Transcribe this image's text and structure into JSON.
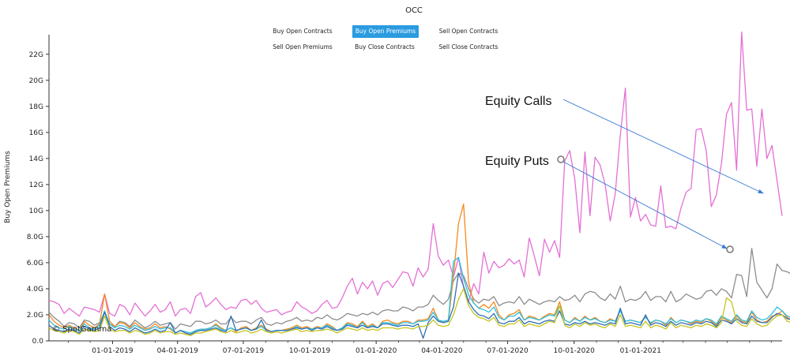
{
  "title": "OCC",
  "buttons": [
    {
      "label": "Buy Open Contracts",
      "active": false
    },
    {
      "label": "Buy Open Premiums",
      "active": true
    },
    {
      "label": "Sell Open Contracts",
      "active": false
    },
    {
      "label": "Sell Open Premiums",
      "active": false
    },
    {
      "label": "Buy Close Contracts",
      "active": false
    },
    {
      "label": "Sell Close Contracts",
      "active": false
    }
  ],
  "watermark": "© SpotGamma",
  "annotations": {
    "calls": "Equity Calls",
    "puts": "Equity Puts"
  },
  "colors": {
    "pink": "#e46fd6",
    "gray": "#8c8c8c",
    "orange": "#f5891f",
    "cyan": "#2cc0dc",
    "blue": "#2f6fb5",
    "olive": "#c6c41e",
    "arrow": "#3a7bd5",
    "accent": "#2b9be0"
  },
  "chart_data": {
    "type": "line",
    "title": "OCC",
    "xlabel": "",
    "ylabel": "Buy Open Premiums",
    "ylim": [
      0,
      23.5
    ],
    "x_tick_labels": [
      "01-01-2019",
      "04-01-2019",
      "07-01-2019",
      "10-01-2019",
      "01-01-2020",
      "04-01-2020",
      "07-01-2020",
      "10-01-2020",
      "01-01-2021"
    ],
    "y_tick_labels": [
      "0.0",
      "2.0G",
      "4.0G",
      "6.0G",
      "8.0G",
      "10G",
      "12G",
      "14G",
      "16G",
      "18G",
      "20G",
      "22G"
    ],
    "y_tick_values": [
      0,
      2,
      4,
      6,
      8,
      10,
      12,
      14,
      16,
      18,
      20,
      22
    ],
    "x_start": "2018-10-05",
    "x_step_days": 7,
    "series": [
      {
        "color_key": "pink",
        "values": [
          3.1,
          3.0,
          2.8,
          2.1,
          2.5,
          2.2,
          1.9,
          2.6,
          2.5,
          2.4,
          2.2,
          3.6,
          2.1,
          1.9,
          2.8,
          2.6,
          2.0,
          2.9,
          2.4,
          1.9,
          2.3,
          2.8,
          2.2,
          2.4,
          3.0,
          1.9,
          2.4,
          2.5,
          2.1,
          3.4,
          3.7,
          2.6,
          2.9,
          3.3,
          2.8,
          2.4,
          2.6,
          2.5,
          3.1,
          3.2,
          2.8,
          3.1,
          2.5,
          2.2,
          2.3,
          2.4,
          2.0,
          2.2,
          2.3,
          3.0,
          2.6,
          2.4,
          2.1,
          2.3,
          2.8,
          3.1,
          2.5,
          2.6,
          3.3,
          4.2,
          4.8,
          3.6,
          4.5,
          4.0,
          4.6,
          3.5,
          4.4,
          4.6,
          4.1,
          4.7,
          5.3,
          5.2,
          4.2,
          5.6,
          4.9,
          5.5,
          9.0,
          6.5,
          5.8,
          6.2,
          4.9,
          6.4,
          4.1,
          3.0,
          4.4,
          3.6,
          6.8,
          5.2,
          6.1,
          5.6,
          5.8,
          6.3,
          5.9,
          6.2,
          4.9,
          7.9,
          6.5,
          5.0,
          7.8,
          6.8,
          7.7,
          6.4,
          13.8,
          14.6,
          12.4,
          8.3,
          14.5,
          9.6,
          14.1,
          13.5,
          12.0,
          9.2,
          11.3,
          15.8,
          19.4,
          9.5,
          11.0,
          9.2,
          9.7,
          8.9,
          8.8,
          11.9,
          8.7,
          8.8,
          8.6,
          10.2,
          11.4,
          11.7,
          16.2,
          16.3,
          14.6,
          10.3,
          11.2,
          13.6,
          17.4,
          18.3,
          13.1,
          23.7,
          17.7,
          17.8,
          13.4,
          17.8,
          14.0,
          15.0,
          12.3,
          9.6
        ]
      },
      {
        "color_key": "gray",
        "values": [
          2.2,
          1.8,
          1.5,
          1.1,
          1.4,
          1.3,
          1.0,
          1.6,
          1.5,
          1.2,
          1.4,
          2.2,
          1.3,
          1.1,
          1.5,
          1.4,
          1.1,
          1.6,
          1.3,
          1.0,
          1.2,
          1.5,
          1.2,
          1.3,
          1.4,
          0.9,
          1.3,
          1.2,
          1.1,
          1.5,
          1.5,
          1.3,
          1.4,
          1.6,
          1.3,
          1.3,
          1.8,
          1.4,
          1.5,
          1.5,
          1.3,
          1.6,
          1.8,
          1.3,
          1.2,
          1.4,
          1.3,
          1.5,
          1.6,
          1.8,
          1.5,
          1.6,
          1.5,
          1.8,
          1.7,
          2.0,
          1.7,
          1.6,
          1.8,
          2.1,
          2.0,
          1.9,
          2.1,
          2.0,
          2.2,
          2.0,
          2.3,
          2.4,
          2.3,
          2.3,
          2.6,
          2.5,
          2.3,
          2.6,
          2.6,
          2.8,
          3.5,
          3.1,
          2.8,
          3.2,
          4.6,
          5.2,
          5.0,
          4.0,
          3.2,
          2.9,
          3.2,
          3.1,
          3.4,
          2.7,
          2.9,
          3.0,
          2.9,
          3.4,
          2.8,
          3.2,
          3.0,
          2.8,
          3.0,
          3.1,
          3.0,
          3.4,
          3.1,
          3.2,
          3.5,
          3.0,
          3.6,
          3.8,
          3.7,
          3.3,
          3.1,
          3.6,
          3.2,
          4.2,
          3.0,
          3.2,
          3.1,
          3.3,
          3.8,
          3.1,
          3.4,
          3.4,
          3.0,
          3.8,
          3.0,
          3.2,
          3.6,
          3.4,
          3.2,
          3.3,
          3.8,
          3.9,
          3.5,
          4.0,
          3.8,
          3.3,
          5.1,
          5.0,
          3.4,
          7.1,
          4.5,
          3.9,
          3.3,
          4.0,
          5.9,
          5.4,
          5.3,
          5.1,
          4.3,
          4.7
        ]
      },
      {
        "color_key": "orange",
        "values": [
          2.0,
          1.5,
          1.2,
          1.0,
          1.2,
          1.0,
          0.8,
          1.5,
          1.2,
          1.0,
          1.3,
          3.6,
          1.5,
          1.1,
          1.4,
          1.3,
          1.0,
          1.4,
          1.1,
          0.9,
          1.0,
          1.3,
          1.0,
          1.1,
          0.9,
          0.6,
          0.8,
          0.6,
          0.5,
          0.7,
          0.8,
          0.9,
          1.0,
          1.3,
          1.0,
          0.8,
          1.0,
          0.7,
          1.0,
          1.1,
          0.8,
          1.0,
          1.2,
          0.9,
          0.7,
          0.8,
          0.8,
          0.9,
          1.0,
          1.2,
          1.0,
          1.1,
          0.9,
          1.1,
          1.0,
          1.3,
          1.1,
          0.8,
          1.0,
          1.4,
          1.3,
          1.1,
          1.5,
          1.1,
          1.3,
          1.0,
          1.5,
          1.6,
          1.4,
          1.3,
          1.5,
          1.5,
          1.3,
          1.6,
          1.6,
          1.7,
          2.5,
          1.6,
          1.4,
          1.5,
          5.0,
          9.0,
          10.5,
          4.5,
          2.9,
          2.5,
          2.8,
          2.5,
          3.0,
          2.0,
          1.6,
          2.0,
          2.1,
          2.4,
          1.6,
          1.9,
          1.8,
          1.6,
          1.9,
          2.1,
          2.0,
          3.0,
          1.6,
          1.4,
          1.8,
          1.5,
          1.9,
          1.6,
          1.8,
          1.5,
          1.4,
          1.7,
          1.5,
          2.4,
          1.5,
          1.6,
          1.5,
          1.4,
          1.9,
          1.3,
          1.6,
          1.5,
          1.2,
          1.8,
          1.4,
          1.6,
          1.5,
          1.3,
          1.5,
          1.4,
          1.7,
          1.5,
          1.2,
          1.8,
          1.6,
          1.4,
          1.9,
          1.5,
          1.4,
          2.2,
          1.6,
          1.4,
          1.5,
          1.9,
          2.0,
          2.3,
          1.8,
          1.6,
          1.5,
          1.7
        ]
      },
      {
        "color_key": "cyan",
        "values": [
          1.6,
          1.2,
          1.0,
          0.9,
          1.1,
          0.9,
          0.8,
          1.3,
          1.0,
          0.9,
          1.2,
          2.3,
          1.3,
          1.0,
          1.2,
          1.1,
          0.9,
          1.2,
          1.0,
          0.8,
          0.9,
          1.1,
          0.9,
          1.0,
          1.0,
          0.6,
          0.8,
          0.7,
          0.6,
          0.8,
          0.9,
          0.9,
          1.0,
          1.2,
          0.9,
          0.8,
          1.0,
          0.8,
          0.9,
          1.0,
          0.8,
          0.9,
          1.1,
          0.8,
          0.7,
          0.8,
          0.8,
          0.8,
          0.9,
          1.1,
          0.9,
          1.0,
          0.9,
          1.0,
          1.0,
          1.2,
          1.0,
          0.8,
          1.0,
          1.3,
          1.2,
          1.0,
          1.4,
          1.0,
          1.2,
          1.0,
          1.4,
          1.4,
          1.3,
          1.2,
          1.4,
          1.4,
          1.3,
          1.5,
          1.5,
          1.6,
          2.2,
          1.6,
          1.5,
          1.6,
          6.1,
          6.4,
          4.8,
          3.5,
          2.9,
          2.5,
          2.4,
          2.2,
          2.6,
          1.8,
          1.6,
          1.9,
          1.9,
          2.2,
          1.6,
          1.8,
          1.7,
          1.6,
          1.8,
          2.0,
          1.9,
          2.7,
          1.6,
          1.4,
          1.7,
          1.5,
          1.8,
          1.6,
          1.7,
          1.5,
          1.4,
          1.6,
          1.5,
          2.3,
          1.5,
          1.6,
          1.5,
          1.4,
          1.8,
          1.4,
          1.6,
          1.5,
          1.3,
          1.7,
          1.4,
          1.6,
          1.5,
          1.4,
          1.6,
          1.5,
          1.7,
          1.6,
          1.3,
          1.9,
          1.7,
          1.5,
          2.0,
          1.6,
          1.5,
          2.3,
          1.8,
          1.6,
          1.7,
          2.1,
          2.6,
          2.3,
          1.9,
          1.8,
          1.8,
          1.9
        ]
      },
      {
        "color_key": "blue",
        "values": [
          1.2,
          0.9,
          0.8,
          0.7,
          0.9,
          0.8,
          0.6,
          1.1,
          0.9,
          0.8,
          1.0,
          2.2,
          1.1,
          0.8,
          1.0,
          0.9,
          0.7,
          1.0,
          0.8,
          0.6,
          0.7,
          0.9,
          0.7,
          0.8,
          1.4,
          0.6,
          0.8,
          0.6,
          0.5,
          0.7,
          0.8,
          0.8,
          0.9,
          1.0,
          0.8,
          0.7,
          1.9,
          0.8,
          0.9,
          1.0,
          0.8,
          0.9,
          1.6,
          0.8,
          0.7,
          0.8,
          0.8,
          0.8,
          0.9,
          1.0,
          0.9,
          1.0,
          0.8,
          1.0,
          0.9,
          1.1,
          0.9,
          0.8,
          0.9,
          1.2,
          1.1,
          1.0,
          1.2,
          1.0,
          1.1,
          1.0,
          1.3,
          1.3,
          1.2,
          1.1,
          1.2,
          1.2,
          1.1,
          1.3,
          0.2,
          1.4,
          1.9,
          1.5,
          1.4,
          1.5,
          2.6,
          5.2,
          4.2,
          3.0,
          2.4,
          2.0,
          1.9,
          1.7,
          2.1,
          1.4,
          1.3,
          1.5,
          1.5,
          1.8,
          1.3,
          1.5,
          1.4,
          1.3,
          1.5,
          1.6,
          1.5,
          2.3,
          1.3,
          1.2,
          1.4,
          1.3,
          1.5,
          1.3,
          1.4,
          1.3,
          1.2,
          1.4,
          1.3,
          2.5,
          1.3,
          1.4,
          1.3,
          1.2,
          2.0,
          1.2,
          1.4,
          1.3,
          1.1,
          1.5,
          1.2,
          1.4,
          1.3,
          1.2,
          1.4,
          1.3,
          1.5,
          1.4,
          1.1,
          1.6,
          1.5,
          1.3,
          1.7,
          1.4,
          1.3,
          1.9,
          1.5,
          1.4,
          1.4,
          1.8,
          2.1,
          2.0,
          1.7,
          1.6,
          2.6,
          1.3
        ]
      },
      {
        "color_key": "olive",
        "values": [
          1.0,
          0.8,
          0.7,
          0.6,
          0.8,
          0.7,
          0.5,
          0.9,
          0.8,
          0.7,
          0.8,
          1.9,
          0.9,
          0.7,
          0.8,
          0.8,
          0.6,
          0.8,
          0.7,
          0.5,
          0.6,
          0.8,
          0.6,
          0.7,
          0.7,
          0.5,
          0.6,
          0.5,
          0.4,
          0.6,
          0.6,
          0.7,
          0.8,
          0.9,
          0.7,
          0.6,
          0.8,
          0.6,
          0.7,
          0.8,
          0.6,
          0.7,
          0.9,
          0.7,
          0.6,
          0.7,
          0.6,
          0.7,
          0.8,
          0.9,
          0.7,
          0.8,
          0.7,
          0.8,
          0.8,
          0.9,
          0.8,
          0.6,
          0.8,
          1.0,
          0.9,
          0.8,
          1.0,
          0.8,
          0.9,
          0.8,
          1.0,
          1.0,
          1.0,
          0.9,
          1.0,
          1.0,
          0.9,
          1.1,
          1.1,
          1.2,
          1.6,
          1.2,
          1.1,
          1.2,
          2.0,
          3.2,
          4.0,
          2.7,
          2.1,
          1.8,
          1.7,
          1.5,
          1.8,
          1.2,
          1.1,
          1.3,
          1.3,
          1.6,
          1.1,
          1.3,
          1.2,
          1.1,
          1.3,
          1.5,
          1.4,
          2.7,
          1.2,
          1.0,
          1.3,
          1.1,
          1.4,
          1.2,
          1.3,
          1.1,
          1.0,
          1.3,
          1.1,
          2.0,
          1.1,
          1.2,
          1.1,
          1.0,
          1.5,
          1.0,
          1.2,
          1.1,
          0.9,
          1.4,
          1.0,
          1.2,
          1.1,
          1.0,
          1.2,
          1.1,
          1.3,
          1.2,
          1.0,
          1.4,
          3.3,
          3.0,
          1.5,
          1.2,
          1.1,
          1.7,
          1.3,
          1.1,
          1.2,
          1.6,
          1.9,
          2.0,
          1.5,
          1.4,
          1.3,
          1.5
        ]
      }
    ]
  }
}
